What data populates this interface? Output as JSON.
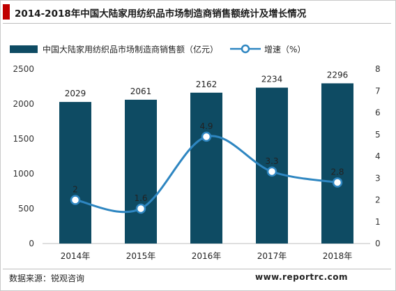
{
  "title": "2014-2018年中国大陆家用纺织品市场制造商销售额统计及增长情况",
  "source": "数据来源：锐观咨询",
  "website": "www.reportrc.com",
  "colors": {
    "bar": "#0e4b63",
    "line": "#2e86c1",
    "accent": "#c00000"
  },
  "chart_data": {
    "type": "bar+line",
    "categories": [
      "2014年",
      "2015年",
      "2016年",
      "2017年",
      "2018年"
    ],
    "series": [
      {
        "name": "中国大陆家用纺织品市场制造商销售额（亿元）",
        "type": "bar",
        "axis": "left",
        "values": [
          2029,
          2061,
          2162,
          2234,
          2296
        ]
      },
      {
        "name": "增速（%）",
        "type": "line",
        "axis": "right",
        "values": [
          2,
          1.6,
          4.9,
          3.3,
          2.8
        ]
      }
    ],
    "y_left": {
      "ticks": [
        0,
        500,
        1000,
        1500,
        2000,
        2500
      ],
      "ylim": [
        0,
        2500
      ]
    },
    "y_right": {
      "ticks": [
        0,
        1,
        2,
        3,
        4,
        5,
        6,
        7,
        8
      ],
      "ylim": [
        0,
        8
      ]
    },
    "legend_position": "top"
  }
}
